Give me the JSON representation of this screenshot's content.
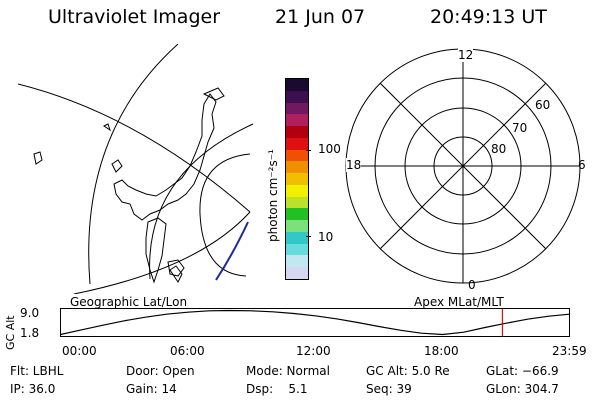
{
  "header": {
    "instrument": "Ultraviolet Imager",
    "date": "21 Jun 07",
    "time": "20:49:13 UT"
  },
  "colorbar": {
    "label": "photon cm⁻²s⁻¹",
    "tick_100": "100",
    "tick_10": "10",
    "colors": [
      "#d6d6f2",
      "#c0e8f0",
      "#66dcdc",
      "#33c8c8",
      "#7ce07c",
      "#22c022",
      "#bde02a",
      "#f0f000",
      "#f0c000",
      "#f09000",
      "#f05000",
      "#e01010",
      "#b00010",
      "#b02060",
      "#701860",
      "#3c1050",
      "#1a0a30"
    ]
  },
  "polar": {
    "mlt_labels": {
      "top": "12",
      "left": "18",
      "right": "6",
      "bottom": "0"
    },
    "lat_labels": [
      "60",
      "70",
      "80"
    ]
  },
  "panel_labels": {
    "left": "Geographic Lat/Lon",
    "right": "Apex MLat/MLT"
  },
  "altitude_plot": {
    "ylabel": "GC Alt",
    "ytick_top": "9.0",
    "ytick_bottom": "1.8",
    "xticks": [
      "00:00",
      "06:00",
      "12:00",
      "18:00",
      "23:59"
    ],
    "marker_color": "#ff0000"
  },
  "chart_data": {
    "type": "line",
    "title": "",
    "xlabel": "",
    "ylabel": "GC Alt",
    "xlim_hours": [
      0,
      23.98
    ],
    "ylim": [
      1.8,
      9.0
    ],
    "series": [
      {
        "x": [
          0,
          1,
          2,
          3,
          4,
          5,
          6,
          7,
          8,
          9,
          10,
          11,
          12,
          13,
          14,
          15,
          16,
          17,
          18,
          19,
          20,
          21,
          22,
          23,
          23.98
        ],
        "values": [
          1.8,
          3.2,
          4.6,
          5.9,
          7.0,
          7.9,
          8.5,
          8.9,
          9.0,
          8.9,
          8.6,
          8.1,
          7.4,
          6.5,
          5.4,
          4.2,
          3.1,
          2.2,
          1.8,
          2.5,
          3.9,
          5.2,
          6.4,
          7.3,
          7.9
        ]
      }
    ],
    "current_time_hours": 20.82
  },
  "info": {
    "flt": "Flt: LBHL",
    "door": "Door: Open",
    "mode": "Mode: Normal",
    "gc_alt": "GC Alt: 5.0 Re",
    "glat": "GLat: −66.9",
    "ip": "IP: 36.0",
    "gain": "Gain: 14",
    "dsp": "Dsp:    5.1",
    "seq": "Seq: 39",
    "glon": "GLon: 304.7"
  }
}
